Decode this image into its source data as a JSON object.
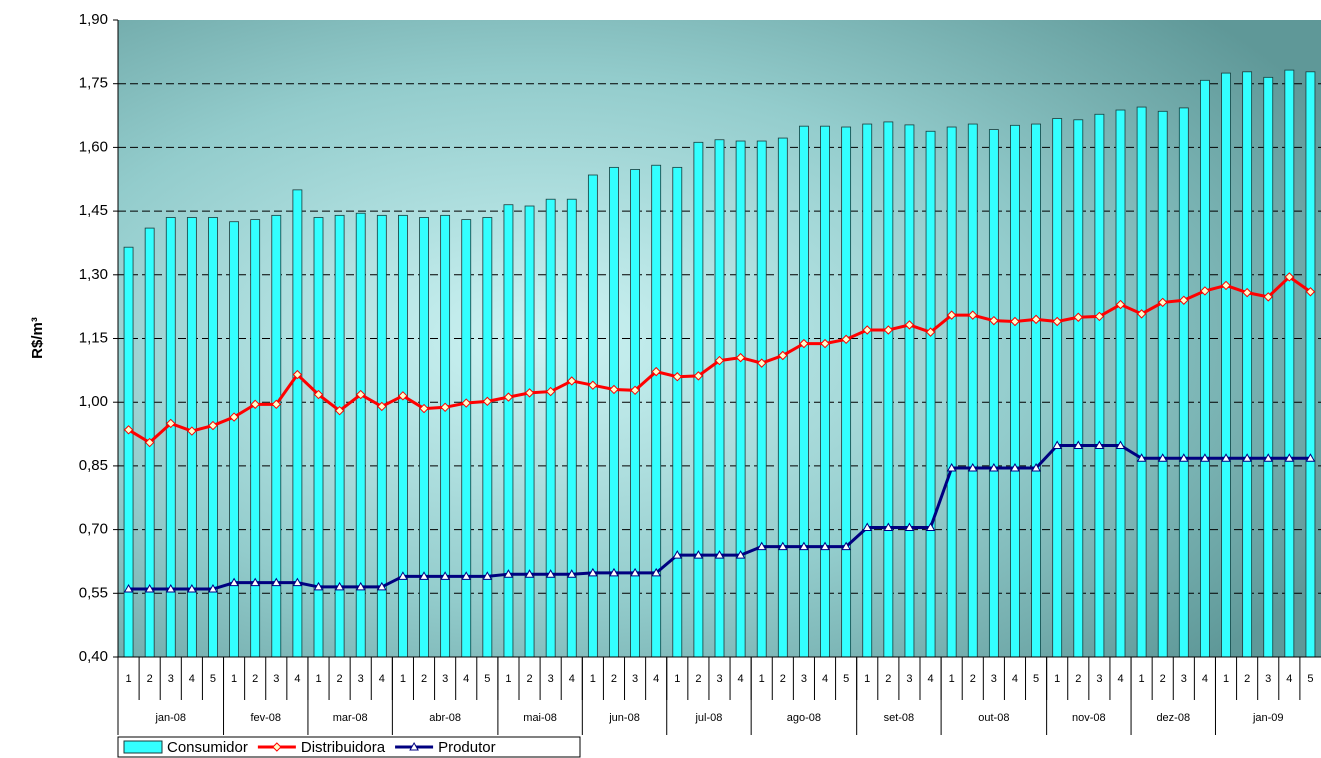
{
  "chart_data": {
    "type": "combo",
    "y_label": "R$/m³",
    "ylim": [
      0.4,
      1.9
    ],
    "yticks": [
      {
        "value": 0.4,
        "label": "0,40"
      },
      {
        "value": 0.55,
        "label": "0,55"
      },
      {
        "value": 0.7,
        "label": "0,70"
      },
      {
        "value": 0.85,
        "label": "0,85"
      },
      {
        "value": 1.0,
        "label": "1,00"
      },
      {
        "value": 1.15,
        "label": "1,15"
      },
      {
        "value": 1.3,
        "label": "1,30"
      },
      {
        "value": 1.45,
        "label": "1,45"
      },
      {
        "value": 1.6,
        "label": "1,60"
      },
      {
        "value": 1.75,
        "label": "1,75"
      },
      {
        "value": 1.9,
        "label": "1,90"
      }
    ],
    "grid": true,
    "legend": "bottom-left",
    "categories": [
      "1",
      "2",
      "3",
      "4",
      "5",
      "1",
      "2",
      "3",
      "4",
      "1",
      "2",
      "3",
      "4",
      "1",
      "2",
      "3",
      "4",
      "5",
      "1",
      "2",
      "3",
      "4",
      "1",
      "2",
      "3",
      "4",
      "1",
      "2",
      "3",
      "4",
      "1",
      "2",
      "3",
      "4",
      "5",
      "1",
      "2",
      "3",
      "4",
      "1",
      "2",
      "3",
      "4",
      "5",
      "1",
      "2",
      "3",
      "4",
      "1",
      "2",
      "3",
      "4",
      "1",
      "2",
      "3",
      "4",
      "5"
    ],
    "group_labels": [
      "jan-08",
      null,
      null,
      null,
      null,
      "fev-08",
      null,
      null,
      null,
      "mar-08",
      null,
      null,
      null,
      "abr-08",
      null,
      null,
      null,
      null,
      "mai-08",
      null,
      null,
      null,
      "jun-08",
      null,
      null,
      null,
      "jul-08",
      null,
      null,
      null,
      "ago-08",
      null,
      null,
      null,
      null,
      "set-08",
      null,
      null,
      null,
      "out-08",
      null,
      null,
      null,
      null,
      "nov-08",
      null,
      null,
      null,
      "dez-08",
      null,
      null,
      null,
      "jan-09",
      null,
      null,
      null,
      null
    ],
    "series": [
      {
        "name": "Consumidor",
        "type": "bar",
        "color": "#33ffff",
        "values": [
          1.365,
          1.41,
          1.435,
          1.435,
          1.435,
          1.425,
          1.43,
          1.44,
          1.5,
          1.435,
          1.44,
          1.445,
          1.44,
          1.44,
          1.435,
          1.44,
          1.43,
          1.435,
          1.465,
          1.462,
          1.478,
          1.478,
          1.535,
          1.553,
          1.548,
          1.558,
          1.553,
          1.612,
          1.618,
          1.615,
          1.615,
          1.622,
          1.65,
          1.65,
          1.648,
          1.655,
          1.66,
          1.653,
          1.638,
          1.648,
          1.655,
          1.642,
          1.652,
          1.655,
          1.668,
          1.665,
          1.678,
          1.688,
          1.695,
          1.685,
          1.693,
          1.758,
          1.775,
          1.778,
          1.765,
          1.782,
          1.778
        ]
      },
      {
        "name": "Distribuidora",
        "type": "line",
        "color": "#ff0000",
        "marker": "diamond",
        "values": [
          0.935,
          0.905,
          0.95,
          0.932,
          0.945,
          0.965,
          0.995,
          0.995,
          1.065,
          1.018,
          0.98,
          1.018,
          0.99,
          1.015,
          0.985,
          0.988,
          0.998,
          1.002,
          1.012,
          1.022,
          1.025,
          1.05,
          1.04,
          1.03,
          1.028,
          1.072,
          1.06,
          1.062,
          1.098,
          1.105,
          1.092,
          1.11,
          1.138,
          1.138,
          1.148,
          1.17,
          1.17,
          1.182,
          1.165,
          1.205,
          1.205,
          1.192,
          1.19,
          1.195,
          1.19,
          1.2,
          1.202,
          1.23,
          1.208,
          1.235,
          1.24,
          1.262,
          1.275,
          1.258,
          1.248,
          1.295,
          1.26
        ]
      },
      {
        "name": "Produtor",
        "type": "line",
        "color": "#000080",
        "marker": "triangle",
        "values": [
          0.56,
          0.56,
          0.56,
          0.56,
          0.56,
          0.575,
          0.575,
          0.575,
          0.575,
          0.565,
          0.565,
          0.565,
          0.565,
          0.59,
          0.59,
          0.59,
          0.59,
          0.59,
          0.595,
          0.595,
          0.595,
          0.595,
          0.598,
          0.598,
          0.598,
          0.598,
          0.64,
          0.64,
          0.64,
          0.64,
          0.66,
          0.66,
          0.66,
          0.66,
          0.66,
          0.705,
          0.705,
          0.705,
          0.705,
          0.845,
          0.845,
          0.845,
          0.845,
          0.845,
          0.898,
          0.898,
          0.898,
          0.898,
          0.868,
          0.868,
          0.868,
          0.868,
          0.868,
          0.868,
          0.868,
          0.868,
          0.868
        ]
      }
    ]
  }
}
